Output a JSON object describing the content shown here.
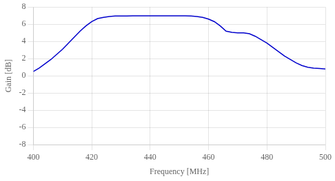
{
  "chart_data": {
    "type": "line",
    "xlabel": "Frequency [MHz]",
    "ylabel": "Gain [dB]",
    "x": [
      400,
      402,
      404,
      406,
      408,
      410,
      412,
      414,
      416,
      418,
      420,
      422,
      424,
      426,
      428,
      430,
      432,
      434,
      436,
      438,
      440,
      442,
      444,
      446,
      448,
      450,
      452,
      454,
      456,
      458,
      460,
      462,
      464,
      466,
      468,
      470,
      472,
      474,
      476,
      478,
      480,
      482,
      484,
      486,
      488,
      490,
      492,
      494,
      496,
      498,
      500
    ],
    "values": [
      0.5,
      0.9,
      1.4,
      1.9,
      2.5,
      3.1,
      3.8,
      4.5,
      5.2,
      5.8,
      6.3,
      6.65,
      6.8,
      6.9,
      6.95,
      6.95,
      6.95,
      6.97,
      6.97,
      6.97,
      6.97,
      6.97,
      6.97,
      6.97,
      6.97,
      6.97,
      6.97,
      6.95,
      6.9,
      6.8,
      6.6,
      6.3,
      5.8,
      5.2,
      5.05,
      5.0,
      5.0,
      4.9,
      4.6,
      4.2,
      3.8,
      3.3,
      2.8,
      2.3,
      1.9,
      1.5,
      1.2,
      1.0,
      0.9,
      0.85,
      0.8
    ],
    "color": "#0000cc",
    "xlim": [
      400,
      500
    ],
    "ylim": [
      -8,
      8
    ],
    "xticks": [
      400,
      420,
      440,
      460,
      480,
      500
    ],
    "yticks": [
      -8,
      -6,
      -4,
      -2,
      0,
      2,
      4,
      6,
      8
    ],
    "grid": true
  }
}
